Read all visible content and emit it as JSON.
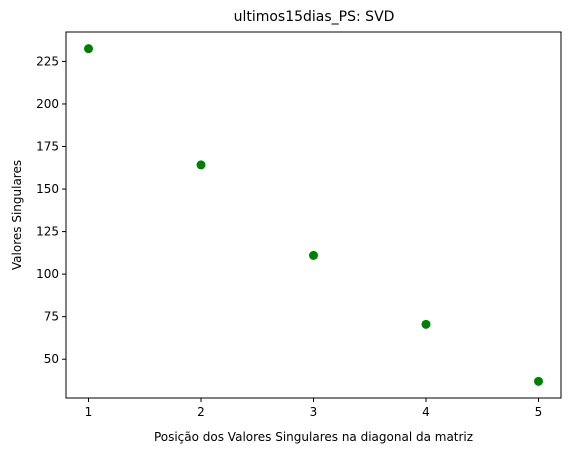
{
  "chart_data": {
    "type": "scatter",
    "title": "ultimos15dias_PS: SVD",
    "xlabel": "Posição dos Valores Singulares na diagonal da matriz",
    "ylabel": "Valores Singulares",
    "x": [
      1,
      2,
      3,
      4,
      5
    ],
    "y": [
      232.5,
      164.2,
      111.0,
      70.5,
      37.0
    ],
    "xlim": [
      0.8,
      5.2
    ],
    "ylim": [
      27.2,
      242.3
    ],
    "xticks": [
      1,
      2,
      3,
      4,
      5
    ],
    "yticks": [
      50,
      75,
      100,
      125,
      150,
      175,
      200,
      225
    ],
    "marker_color": "#008000",
    "grid": false,
    "legend": "none"
  }
}
